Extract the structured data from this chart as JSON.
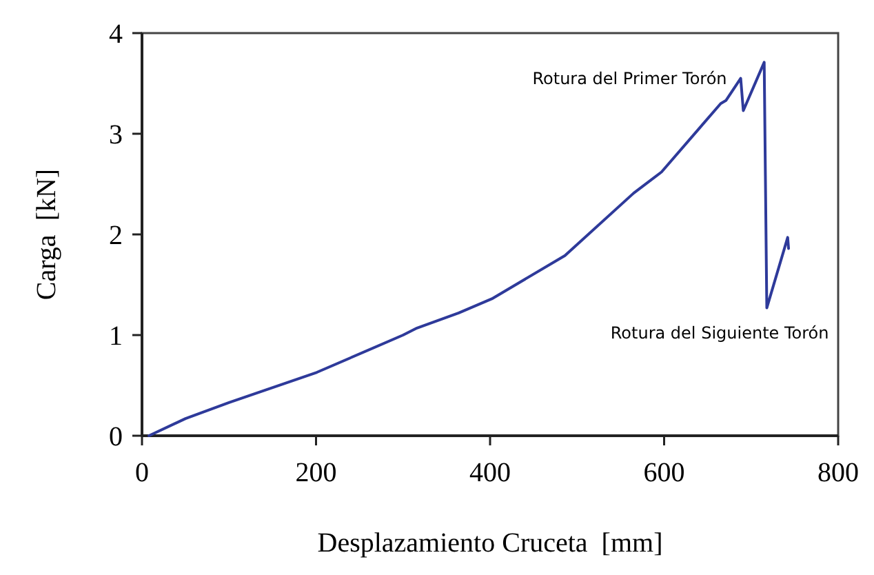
{
  "chart_data": {
    "type": "line",
    "xlabel": "Desplazamiento Cruceta  [mm]",
    "ylabel": "Carga  [kN]",
    "x": [
      8,
      50,
      100,
      201,
      300,
      316,
      364,
      402,
      486,
      565,
      597,
      665,
      671,
      688,
      691,
      715,
      718,
      742,
      743
    ],
    "series": [
      {
        "color": "#2e3a9a",
        "values": [
          0,
          0.17,
          0.33,
          0.63,
          1.0,
          1.07,
          1.22,
          1.36,
          1.79,
          2.41,
          2.62,
          3.3,
          3.33,
          3.55,
          3.23,
          3.71,
          1.27,
          1.97,
          1.86
        ]
      }
    ],
    "xlim": [
      0,
      800
    ],
    "ylim": [
      0,
      4
    ],
    "xticks": [
      0,
      200,
      400,
      600,
      800
    ],
    "yticks": [
      0,
      1,
      2,
      3,
      4
    ],
    "grid": false,
    "marker": "none",
    "line_style": "solid",
    "annotations": [
      {
        "text": "Rotura del Primer Torón",
        "x": 688,
        "y": 3.55
      },
      {
        "text": "Rotura del Siguiente Torón",
        "x": 718,
        "y": 1.27
      }
    ]
  }
}
